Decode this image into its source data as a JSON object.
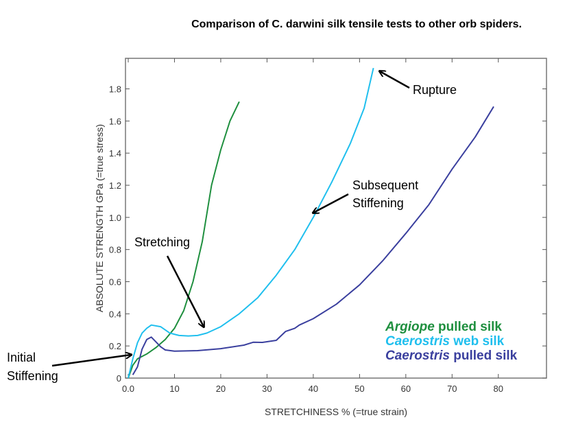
{
  "chart_data": {
    "type": "line",
    "title": "Comparison of C. darwini silk tensile tests to other orb spiders.",
    "xlabel": "STRETCHINESS % (=true strain)",
    "ylabel": "ABSOLUTE STRENGTH  GPa (=true stress)",
    "xlim": [
      0,
      91
    ],
    "ylim": [
      0,
      1.99
    ],
    "xticks": [
      0,
      10,
      20,
      30,
      40,
      50,
      60,
      70,
      80
    ],
    "xtick_labels": [
      "0.0",
      "10",
      "20",
      "30",
      "40",
      "50",
      "60",
      "70",
      "80"
    ],
    "yticks": [
      0,
      0.2,
      0.4,
      0.6,
      0.8,
      1.0,
      1.2,
      1.4,
      1.6,
      1.8
    ],
    "ytick_labels": [
      "0",
      "0.2",
      "0.4",
      "0.6",
      "0.8",
      "1.0",
      "1.2",
      "1.4",
      "1.6",
      "1.8"
    ],
    "grid": false,
    "legend_position": "bottom-right",
    "series": [
      {
        "name": "Argiope pulled silk",
        "italic": "Argiope",
        "rest": " pulled silk",
        "color": "#1e8f3e",
        "x": [
          0,
          1,
          2,
          4,
          6,
          8,
          10,
          12,
          14,
          16,
          18,
          20,
          22,
          24
        ],
        "y": [
          0,
          0.08,
          0.12,
          0.15,
          0.19,
          0.24,
          0.31,
          0.42,
          0.6,
          0.85,
          1.2,
          1.42,
          1.6,
          1.72
        ]
      },
      {
        "name": "Caerostris web silk",
        "italic": "Caerostris",
        "rest": " web silk",
        "color": "#1fbfee",
        "x": [
          0,
          1,
          2,
          3,
          4,
          5,
          7,
          9,
          11,
          13,
          15,
          17,
          20,
          24,
          28,
          32,
          36,
          40,
          44,
          48,
          51,
          53
        ],
        "y": [
          0,
          0.12,
          0.22,
          0.28,
          0.31,
          0.33,
          0.32,
          0.28,
          0.265,
          0.262,
          0.265,
          0.28,
          0.32,
          0.4,
          0.5,
          0.64,
          0.8,
          1.0,
          1.22,
          1.46,
          1.68,
          1.93
        ]
      },
      {
        "name": "Caerostris pulled silk",
        "italic": "Caerostris",
        "rest": " pulled silk",
        "color": "#3a3f9e",
        "x": [
          1,
          2,
          3,
          4,
          5,
          6,
          7,
          8,
          10,
          15,
          20,
          25,
          27,
          29,
          32,
          34,
          36,
          37,
          40,
          45,
          50,
          55,
          60,
          65,
          70,
          75,
          79
        ],
        "y": [
          0.02,
          0.07,
          0.18,
          0.24,
          0.255,
          0.225,
          0.195,
          0.175,
          0.168,
          0.171,
          0.183,
          0.205,
          0.223,
          0.222,
          0.235,
          0.29,
          0.31,
          0.33,
          0.37,
          0.46,
          0.58,
          0.73,
          0.9,
          1.08,
          1.3,
          1.5,
          1.69
        ]
      }
    ],
    "annotations": [
      {
        "lines": [
          "Rupture"
        ],
        "points_to": [
          53,
          1.93
        ]
      },
      {
        "lines": [
          "Subsequent",
          "Stiffening"
        ],
        "points_to": [
          40,
          1.0
        ]
      },
      {
        "lines": [
          "Stretching"
        ],
        "points_to": [
          17,
          0.27
        ]
      },
      {
        "lines": [
          "Initial",
          "Stiffening"
        ],
        "points_to": [
          1,
          0.15
        ]
      }
    ]
  }
}
